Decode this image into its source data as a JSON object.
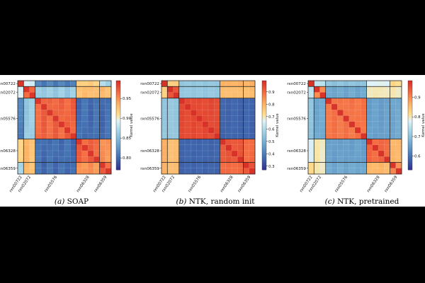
{
  "figure": {
    "labels": [
      "rxn00722",
      "rxn02072",
      "rxn05576",
      "rxn06328",
      "rxn06359"
    ]
  },
  "chart_data": [
    {
      "type": "heatmap",
      "caption_letter": "(a)",
      "caption_text": "SOAP",
      "colorbar_label": "Kernel value",
      "colorbar_ticks": [
        0.8,
        0.85,
        0.9,
        0.95
      ],
      "vmin": 0.77,
      "vmax": 0.995,
      "block_labels": [
        "rxn00722",
        "rxn02072",
        "rxn05576",
        "rxn06328",
        "rxn06359"
      ],
      "block_sizes": [
        1,
        2,
        7,
        4,
        2
      ],
      "block_values": [
        [
          0.97,
          0.89,
          0.81,
          0.92,
          0.87
        ],
        [
          0.89,
          0.97,
          0.86,
          0.93,
          0.93
        ],
        [
          0.81,
          0.86,
          0.97,
          0.8,
          0.8
        ],
        [
          0.92,
          0.93,
          0.8,
          0.97,
          0.95
        ],
        [
          0.87,
          0.93,
          0.8,
          0.95,
          0.97
        ]
      ]
    },
    {
      "type": "heatmap",
      "caption_letter": "(b)",
      "caption_text": "NTK, random init",
      "colorbar_label": "Kernel value",
      "colorbar_ticks": [
        0.3,
        0.4,
        0.5,
        0.6,
        0.7,
        0.8,
        0.9
      ],
      "vmin": 0.27,
      "vmax": 0.99,
      "block_labels": [
        "rxn00722",
        "rxn02072",
        "rxn05576",
        "rxn06328",
        "rxn06359"
      ],
      "block_sizes": [
        1,
        2,
        7,
        4,
        2
      ],
      "block_values": [
        [
          0.9,
          0.75,
          0.55,
          0.8,
          0.8
        ],
        [
          0.75,
          0.93,
          0.55,
          0.78,
          0.78
        ],
        [
          0.55,
          0.55,
          0.95,
          0.35,
          0.35
        ],
        [
          0.8,
          0.78,
          0.35,
          0.93,
          0.9
        ],
        [
          0.8,
          0.78,
          0.35,
          0.9,
          0.93
        ]
      ]
    },
    {
      "type": "heatmap",
      "caption_letter": "(c)",
      "caption_text": "NTK, pretrained",
      "colorbar_label": "Kernel value",
      "colorbar_ticks": [
        0.6,
        0.7,
        0.8,
        0.9
      ],
      "vmin": 0.53,
      "vmax": 0.985,
      "block_labels": [
        "rxn00722",
        "rxn02072",
        "rxn05576",
        "rxn06328",
        "rxn06359"
      ],
      "block_sizes": [
        1,
        2,
        7,
        4,
        2
      ],
      "block_values": [
        [
          0.9,
          0.75,
          0.7,
          0.78,
          0.82
        ],
        [
          0.75,
          0.9,
          0.66,
          0.8,
          0.8
        ],
        [
          0.7,
          0.66,
          0.92,
          0.65,
          0.66
        ],
        [
          0.78,
          0.8,
          0.65,
          0.93,
          0.86
        ],
        [
          0.82,
          0.8,
          0.66,
          0.86,
          0.9
        ]
      ]
    }
  ]
}
